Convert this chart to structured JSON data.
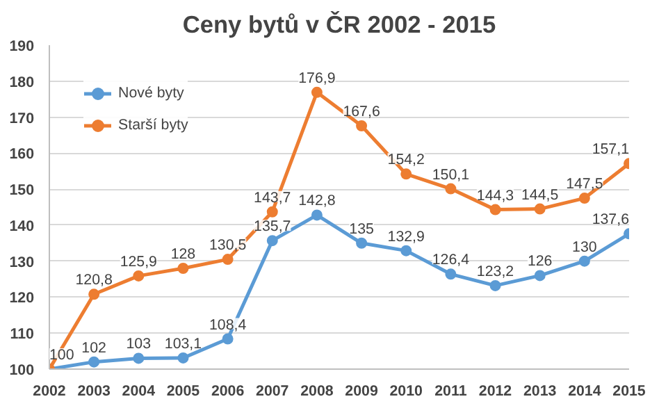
{
  "chart_data": {
    "type": "line",
    "title": "Ceny bytů v ČR 2002 - 2015",
    "x": [
      2002,
      2003,
      2004,
      2005,
      2006,
      2007,
      2008,
      2009,
      2010,
      2011,
      2012,
      2013,
      2014,
      2015
    ],
    "xlim": [
      2002,
      2015
    ],
    "xticks": [
      2002,
      2003,
      2004,
      2005,
      2006,
      2007,
      2008,
      2009,
      2010,
      2011,
      2012,
      2013,
      2014,
      2015
    ],
    "ylim": [
      100,
      190
    ],
    "yticks": [
      100,
      110,
      120,
      130,
      140,
      150,
      160,
      170,
      180,
      190
    ],
    "grid": "y",
    "legend": "top left",
    "marker": "circle",
    "line_style": "solid",
    "series": [
      {
        "name": "Nové byty",
        "color": "#5b9bd5",
        "values": [
          100,
          102,
          103,
          103.1,
          108.4,
          135.7,
          142.8,
          135,
          132.9,
          126.4,
          123.2,
          126,
          130,
          137.6
        ],
        "value_labels": [
          null,
          "102",
          "103",
          "103,1",
          "108,4",
          "135,7",
          "142,8",
          "135",
          "132,9",
          "126,4",
          "123,2",
          "126",
          "130",
          "137,6"
        ]
      },
      {
        "name": "Starší byty",
        "color": "#ed7d31",
        "values": [
          100,
          120.8,
          125.9,
          128,
          130.5,
          143.7,
          176.9,
          167.6,
          154.2,
          150.1,
          144.3,
          144.5,
          147.5,
          157.1
        ],
        "value_labels": [
          "100",
          "120,8",
          "125,9",
          "128",
          "130,5",
          "143,7",
          "176,9",
          "167,6",
          "154,2",
          "150,1",
          "144,3",
          "144,5",
          "147,5",
          "157,1"
        ]
      }
    ]
  }
}
